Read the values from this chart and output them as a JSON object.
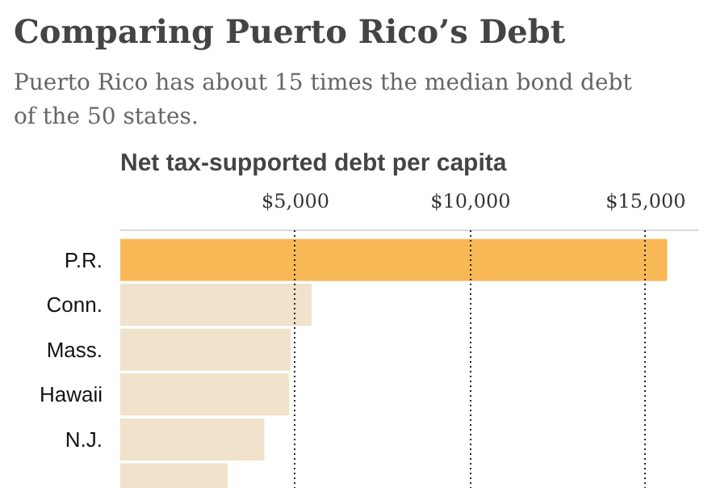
{
  "chart_data": {
    "type": "bar",
    "orientation": "horizontal",
    "title": "Comparing Puerto Rico’s Debt",
    "subtitle": "Puerto Rico has about 15 times the median bond debt of the 50 states.",
    "xlabel": "Net tax-supported debt per capita",
    "categories": [
      "P.R.",
      "Conn.",
      "Mass.",
      "Hawaii",
      "N.J.",
      null
    ],
    "values": [
      15590,
      5440,
      4840,
      4800,
      4090,
      3040
    ],
    "colors": [
      "#f9b856",
      "#f0e2cb",
      "#f0e2cb",
      "#f0e2cb",
      "#f0e2cb",
      "#f0e2cb"
    ],
    "xticks": [
      {
        "value": 5000,
        "label": "$5,000"
      },
      {
        "value": 10000,
        "label": "$10,000"
      },
      {
        "value": 15000,
        "label": "$15,000"
      }
    ],
    "xlim": [
      0,
      16500
    ],
    "grid": "x"
  }
}
